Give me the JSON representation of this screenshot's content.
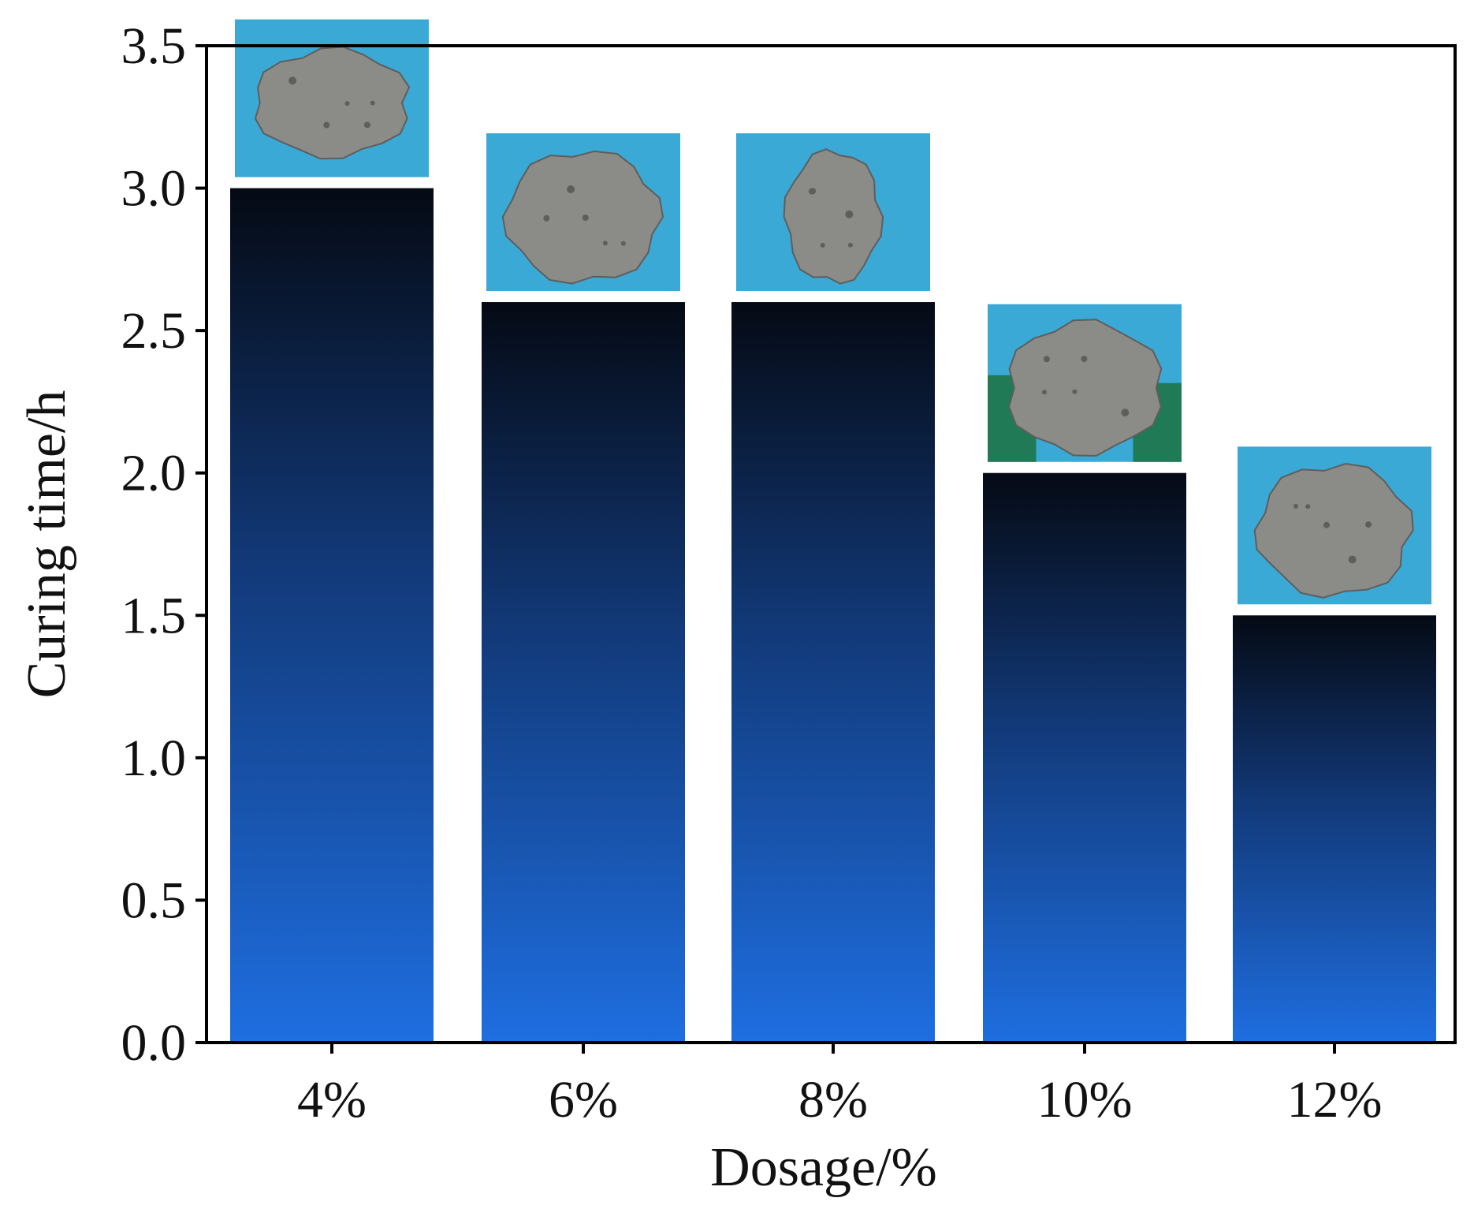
{
  "chart_data": {
    "type": "bar",
    "xlabel": "Dosage/%",
    "ylabel": "Curing time/h",
    "categories": [
      "4%",
      "6%",
      "8%",
      "10%",
      "12%"
    ],
    "values": [
      3.0,
      2.6,
      2.6,
      2.0,
      1.5
    ],
    "ylim": [
      0,
      3.5
    ],
    "yticks": [
      "0.0",
      "0.5",
      "1.0",
      "1.5",
      "2.0",
      "2.5",
      "3.0",
      "3.5"
    ],
    "grid": false,
    "legend": "none",
    "bar_gradient": {
      "top": "#050a14",
      "mid": "#123a7a",
      "bottom": "#1e6ee0"
    },
    "sample_photos": [
      {
        "category": "4%",
        "name": "sample-photo-4"
      },
      {
        "category": "6%",
        "name": "sample-photo-6"
      },
      {
        "category": "8%",
        "name": "sample-photo-8"
      },
      {
        "category": "10%",
        "name": "sample-photo-10"
      },
      {
        "category": "12%",
        "name": "sample-photo-12"
      }
    ],
    "photo_colors": {
      "background": "#3aa9d6",
      "sample": "#8b8b88",
      "sample_dark": "#5e5e5c",
      "backdrop_10": "#1f7a55"
    }
  }
}
